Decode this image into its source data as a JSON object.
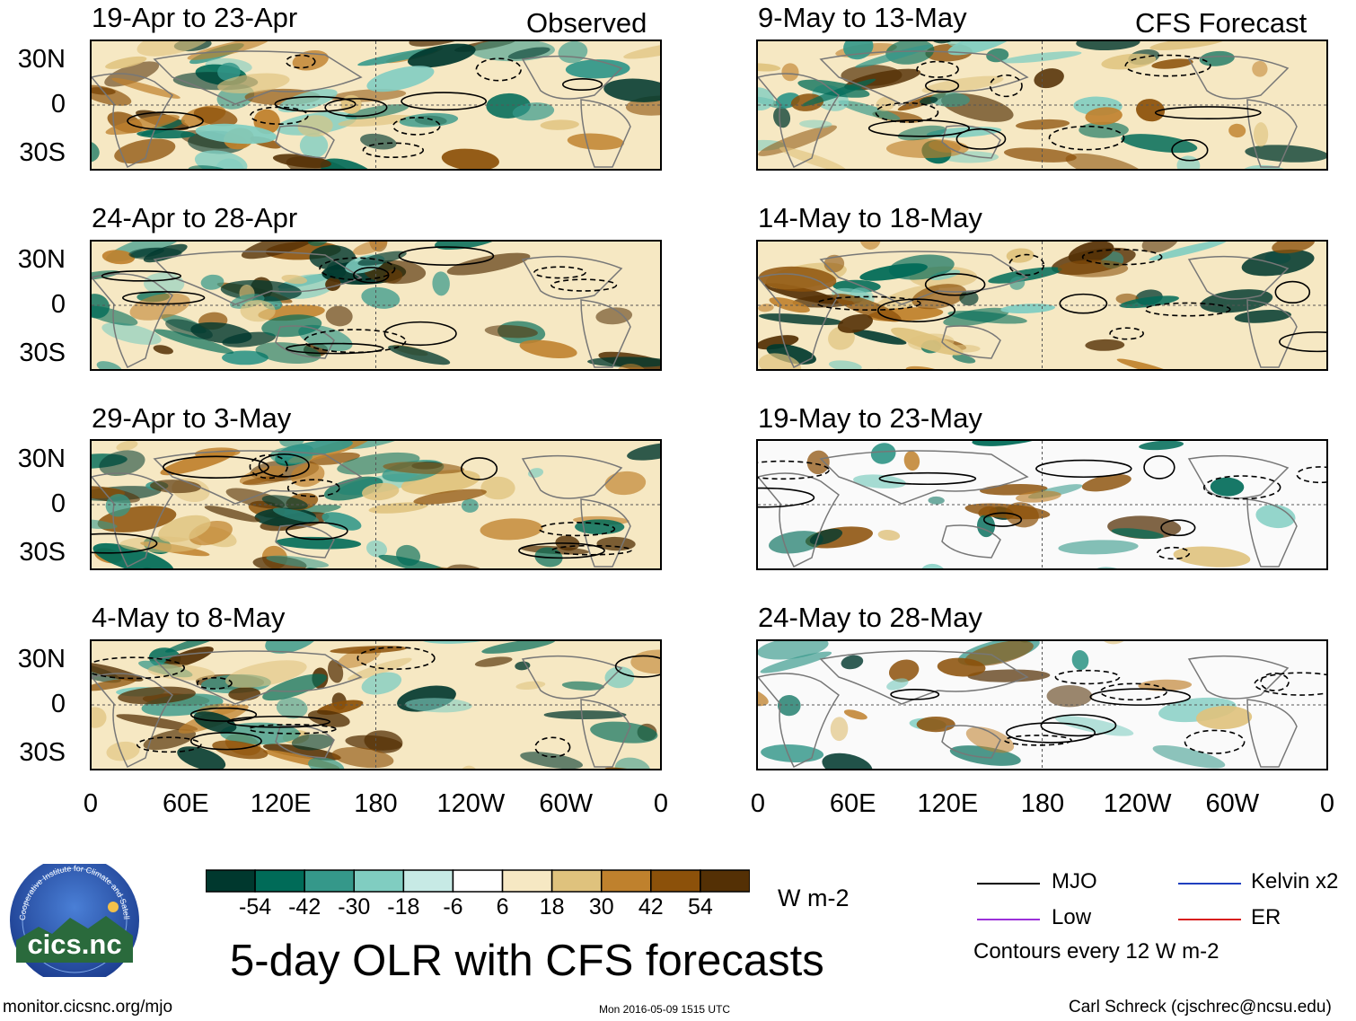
{
  "figure": {
    "title": "5-day OLR with CFS forecasts",
    "units": "W m-2",
    "observed_label": "Observed",
    "forecast_label": "CFS Forecast",
    "url": "monitor.cicsnc.org/mjo",
    "timestamp": "Mon 2016-05-09 1515 UTC",
    "credit": "Carl Schreck (cjschrec@ncsu.edu)",
    "logo_text": "cics.nc",
    "logo_ring_text": "Cooperative Institute for Climate and Satellites"
  },
  "panels": {
    "observed": [
      {
        "period": "19-Apr to 23-Apr"
      },
      {
        "period": "24-Apr to 28-Apr"
      },
      {
        "period": "29-Apr to 3-May"
      },
      {
        "period": "4-May to 8-May"
      }
    ],
    "forecast": [
      {
        "period": "9-May to 13-May"
      },
      {
        "period": "14-May to 18-May"
      },
      {
        "period": "19-May to 23-May"
      },
      {
        "period": "24-May to 28-May"
      }
    ]
  },
  "axes": {
    "lat_labels": [
      "30N",
      "0",
      "30S"
    ],
    "lon_labels": [
      "0",
      "60E",
      "120E",
      "180",
      "120W",
      "60W",
      "0"
    ]
  },
  "colorbar": {
    "labels": [
      "-54",
      "-42",
      "-30",
      "-18",
      "-6",
      "6",
      "18",
      "30",
      "42",
      "54"
    ],
    "colors": [
      "#00382e",
      "#006b58",
      "#35988a",
      "#80cdc1",
      "#c7eae5",
      "#ffffff",
      "#f6e8c3",
      "#dfc27d",
      "#bf812d",
      "#8c510a",
      "#543005"
    ]
  },
  "legend": {
    "mjo": "MJO",
    "kelvin": "Kelvin x2",
    "low": "Low",
    "er": "ER",
    "contours": "Contours every 12 W m-2",
    "colors": {
      "mjo": "#000000",
      "kelvin": "#1f3fbf",
      "low": "#9b30d9",
      "er": "#d81e1e"
    }
  }
}
